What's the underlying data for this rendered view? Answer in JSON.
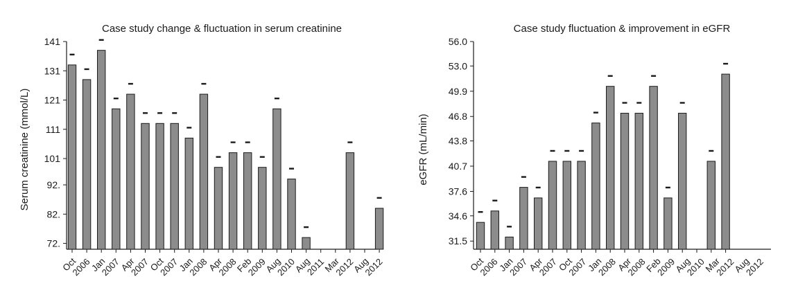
{
  "colors": {
    "bar": "#8c8c8c",
    "outline": "#1a1a1a"
  },
  "chart_data": [
    {
      "type": "bar",
      "title": "Case study change & fluctuation in serum creatinine",
      "xlabel": "",
      "ylabel": "Serum creatinine (mmol/L)",
      "ylim": [
        70,
        141
      ],
      "yticks": [
        "141",
        "131",
        "121",
        "111",
        "101",
        "92.",
        "82.",
        "72."
      ],
      "ytick_values": [
        141,
        131,
        121,
        111,
        101,
        92,
        82,
        72
      ],
      "x_tick_labels": [
        [
          "Oct",
          "2006"
        ],
        [
          "Jan",
          "2007"
        ],
        [
          "Apr",
          "2007"
        ],
        [
          "Oct",
          "2007"
        ],
        [
          "Jan",
          "2008"
        ],
        [
          "Apr",
          "2008"
        ],
        [
          "Feb",
          "2009"
        ],
        [
          "Aug",
          "2010"
        ],
        [
          "Aug",
          "2011"
        ],
        [
          "Mar",
          "2012"
        ],
        [
          "Aug",
          "2012"
        ]
      ],
      "values": [
        133,
        128,
        138,
        118,
        123,
        113,
        113,
        113,
        108,
        123,
        98,
        103,
        103,
        98,
        118,
        94,
        74,
        null,
        null,
        103,
        null,
        84
      ],
      "grid": false,
      "legend": "none"
    },
    {
      "type": "bar",
      "title": "Case study fluctuation & improvement in eGFR",
      "xlabel": "",
      "ylabel": "eGFR (mL/min)",
      "ylim": [
        30.5,
        56.0
      ],
      "yticks": [
        "56.0",
        "53.0",
        "49.9",
        "46.8",
        "43.8",
        "40.7",
        "37.6",
        "34.6",
        "31.5"
      ],
      "ytick_values": [
        56.0,
        53.0,
        49.9,
        46.8,
        43.8,
        40.7,
        37.6,
        34.6,
        31.5
      ],
      "x_tick_labels": [
        [
          "Oct",
          "2006"
        ],
        [
          "Jan",
          "2007"
        ],
        [
          "Apr",
          "2007"
        ],
        [
          "Oct",
          "2007"
        ],
        [
          "Jan",
          "2008"
        ],
        [
          "Apr",
          "2008"
        ],
        [
          "Feb",
          "2009"
        ],
        [
          "Aug",
          "2010"
        ],
        [
          "Mar",
          "2012"
        ],
        [
          "Aug",
          "2012"
        ]
      ],
      "values": [
        33.8,
        35.2,
        32.0,
        38.1,
        36.8,
        41.3,
        41.3,
        41.3,
        46.0,
        50.5,
        47.2,
        47.2,
        50.5,
        36.8,
        47.2,
        null,
        41.3,
        52.0
      ],
      "grid": false,
      "legend": "none"
    }
  ]
}
